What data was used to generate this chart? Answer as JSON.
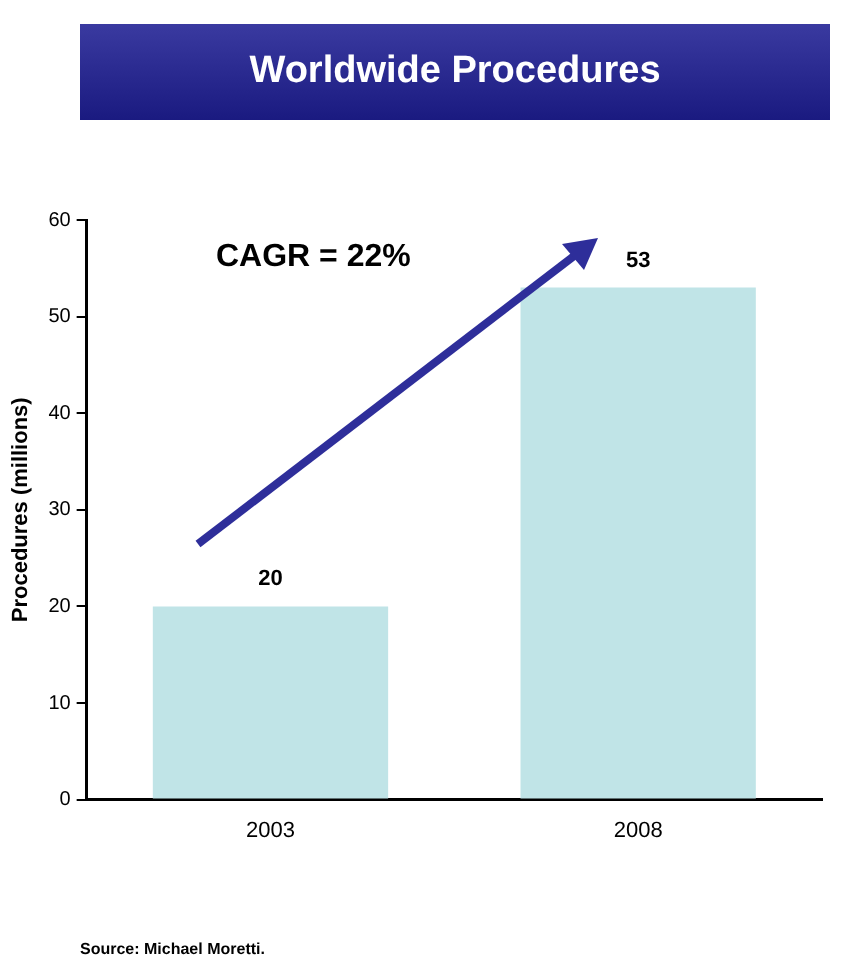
{
  "chart_data": {
    "type": "bar",
    "title": "Worldwide Procedures",
    "ylabel": "Procedures (millions)",
    "categories": [
      "2003",
      "2008"
    ],
    "values": [
      20,
      53
    ],
    "color": "#c0e4e7",
    "ylim": [
      0,
      60
    ],
    "yticks": [
      0,
      10,
      20,
      30,
      40,
      50,
      60
    ],
    "grid": false,
    "legend": false,
    "data_labels": true,
    "annotations": [
      "CAGR = 22%",
      "Source:  Michael Moretti."
    ]
  }
}
